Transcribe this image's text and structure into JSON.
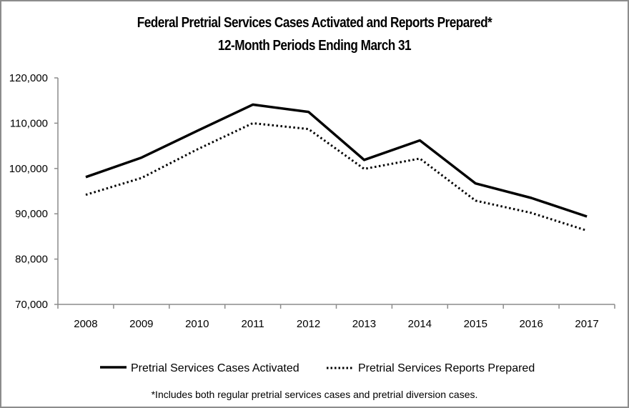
{
  "chart_data": {
    "type": "line",
    "title": "Federal Pretrial Services Cases Activated and Reports Prepared*",
    "subtitle": "12-Month Periods Ending March 31",
    "xlabel": "",
    "ylabel": "",
    "categories": [
      "2008",
      "2009",
      "2010",
      "2011",
      "2012",
      "2013",
      "2014",
      "2015",
      "2016",
      "2017"
    ],
    "ylim": [
      70000,
      120000
    ],
    "yticks": [
      70000,
      80000,
      90000,
      100000,
      110000,
      120000
    ],
    "ytick_labels": [
      "70,000",
      "80,000",
      "90,000",
      "100,000",
      "110,000",
      "120,000"
    ],
    "grid": false,
    "legend_position": "bottom",
    "series": [
      {
        "name": "Pretrial Services Cases Activated",
        "style": "solid",
        "color": "#000000",
        "values": [
          98100,
          102400,
          108300,
          114100,
          112500,
          101900,
          106200,
          96700,
          93500,
          89400
        ]
      },
      {
        "name": "Pretrial Services Reports Prepared",
        "style": "dotted",
        "color": "#000000",
        "values": [
          94200,
          97900,
          104200,
          110000,
          108700,
          99900,
          102200,
          92900,
          90200,
          86300
        ]
      }
    ],
    "footnote": "*Includes both regular pretrial services cases and pretrial diversion cases."
  }
}
